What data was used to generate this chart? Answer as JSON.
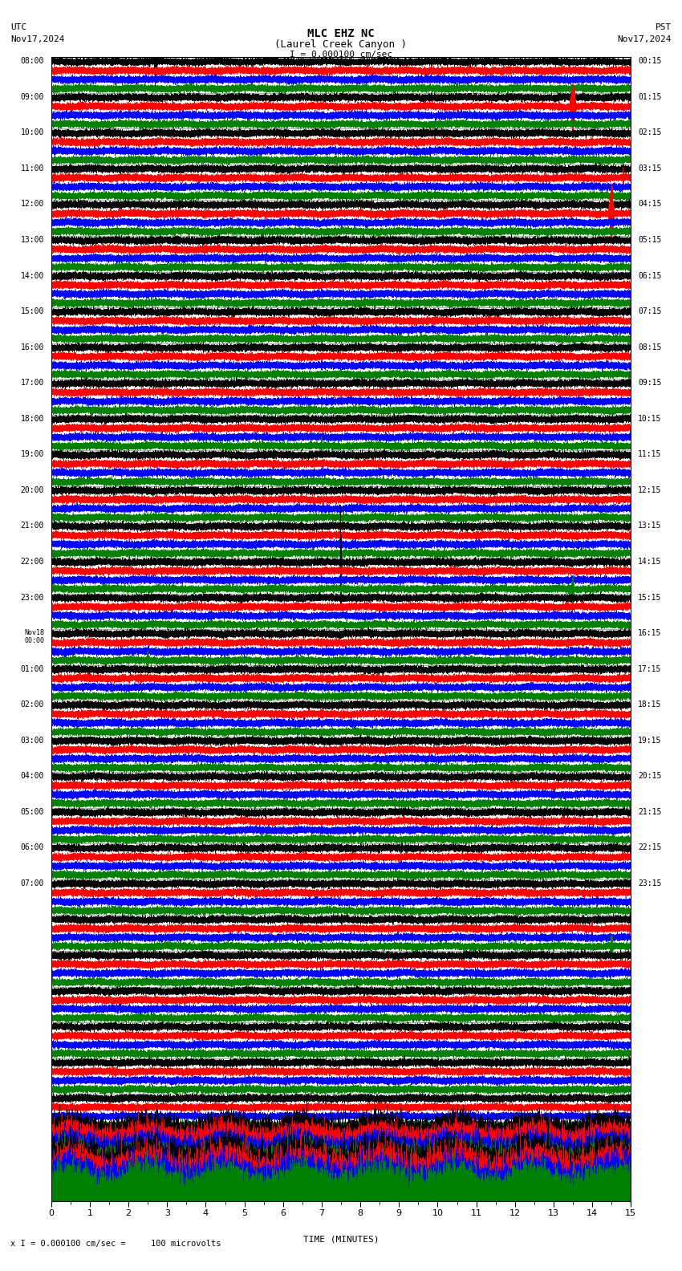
{
  "title_line1": "MLC EHZ NC",
  "title_line2": "(Laurel Creek Canyon )",
  "scale_label": "I = 0.000100 cm/sec",
  "utc_label": "UTC",
  "pst_label": "PST",
  "date_left": "Nov17,2024",
  "date_right": "Nov17,2024",
  "xlabel": "TIME (MINUTES)",
  "bottom_label": "x I = 0.000100 cm/sec =     100 microvolts",
  "bg_color": "#ffffff",
  "trace_colors": [
    "#000000",
    "#ff0000",
    "#0000ff",
    "#008000"
  ],
  "grid_color": "#aaaaaa",
  "num_rows": 32,
  "traces_per_row": 4,
  "minutes_per_row": 15,
  "sample_rate": 50,
  "noise_amplitude": 0.04,
  "left_times": [
    "08:00",
    "09:00",
    "10:00",
    "11:00",
    "12:00",
    "13:00",
    "14:00",
    "15:00",
    "16:00",
    "17:00",
    "18:00",
    "19:00",
    "20:00",
    "21:00",
    "22:00",
    "23:00",
    "00:00",
    "01:00",
    "02:00",
    "03:00",
    "04:00",
    "05:00",
    "06:00",
    "07:00",
    "",
    "",
    "",
    "",
    "",
    "",
    "",
    ""
  ],
  "right_times": [
    "00:15",
    "01:15",
    "02:15",
    "03:15",
    "04:15",
    "05:15",
    "06:15",
    "07:15",
    "08:15",
    "09:15",
    "10:15",
    "11:15",
    "12:15",
    "13:15",
    "14:15",
    "15:15",
    "16:15",
    "17:15",
    "18:15",
    "19:15",
    "20:15",
    "21:15",
    "22:15",
    "23:15",
    "",
    "",
    "",
    "",
    "",
    "",
    "",
    ""
  ],
  "nov18_row": 16,
  "fig_width": 8.5,
  "fig_height": 15.84
}
